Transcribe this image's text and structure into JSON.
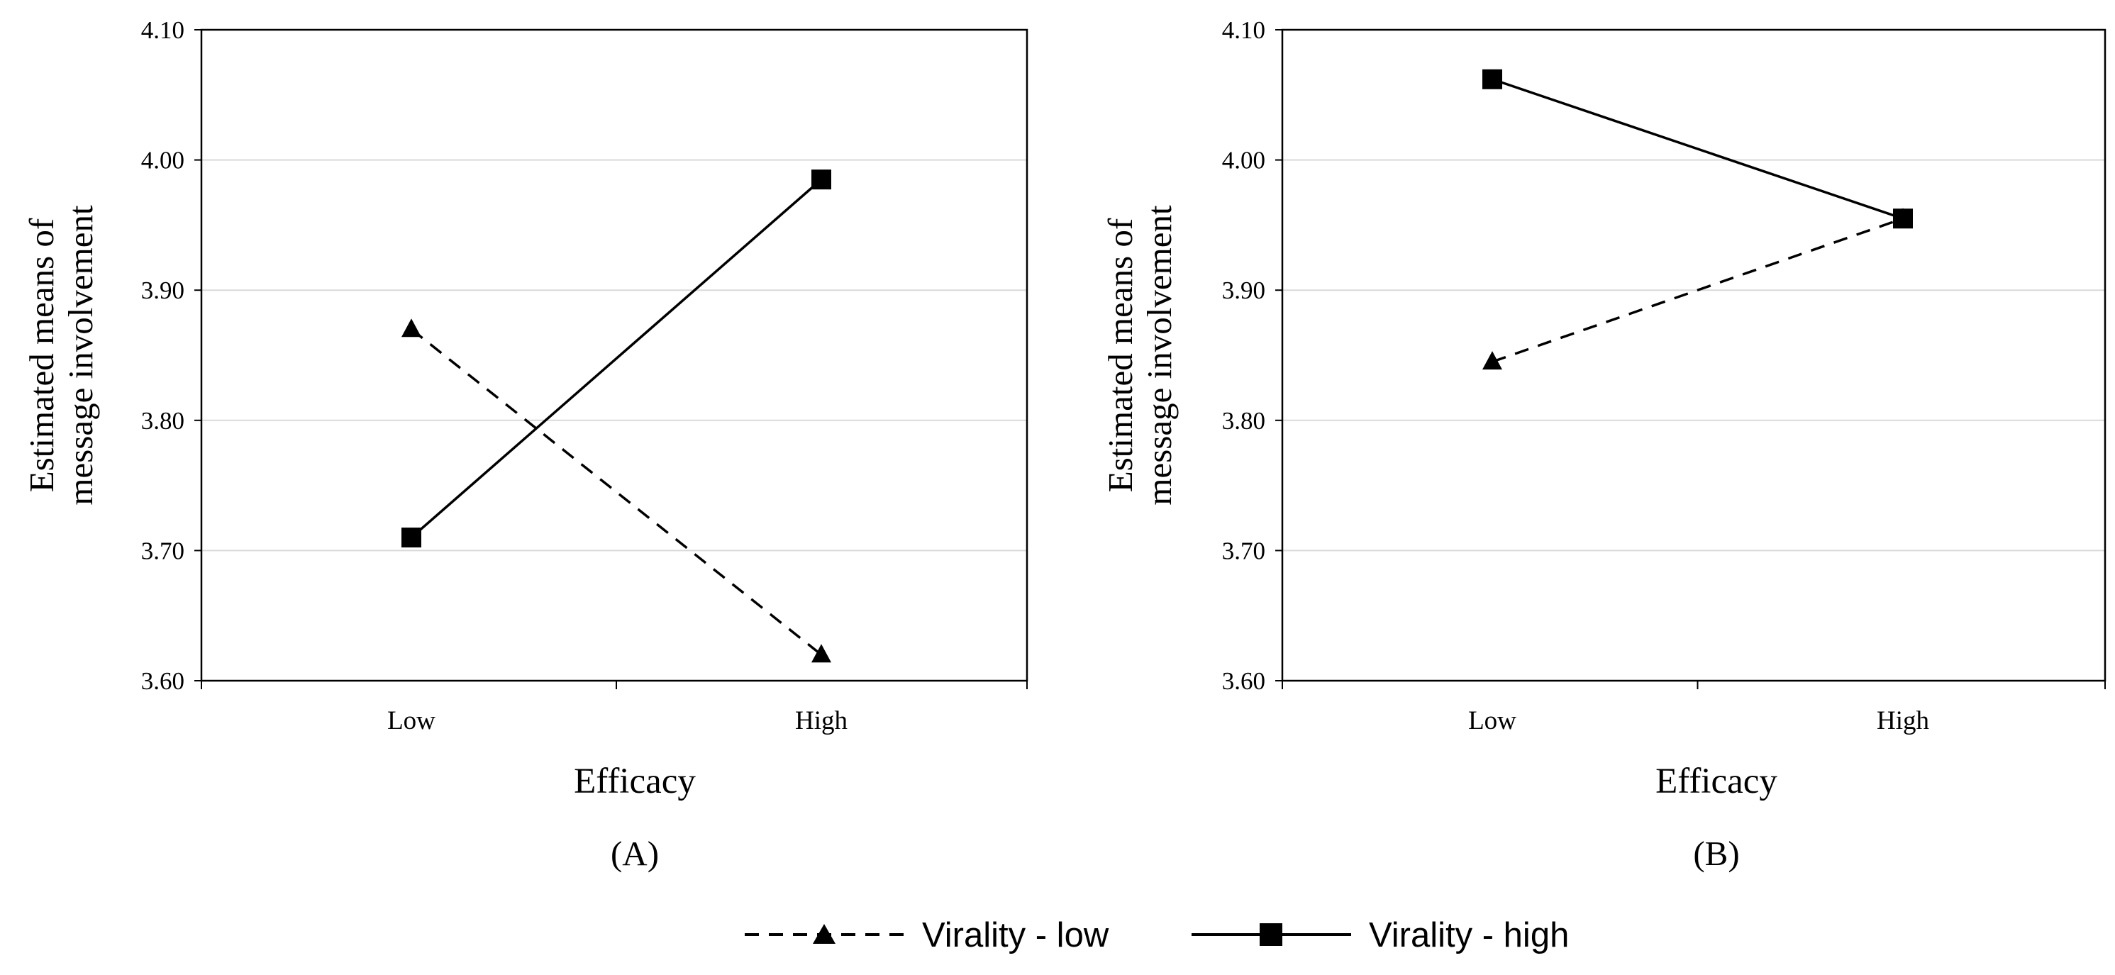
{
  "chart_data": [
    {
      "type": "line",
      "panel_label": "(A)",
      "categories": [
        "Low",
        "High"
      ],
      "xlabel": "Efficacy",
      "ylabel": [
        "Estimated means of",
        "message involvement"
      ],
      "ylim": [
        3.6,
        4.1
      ],
      "yticks": [
        "3.60",
        "3.70",
        "3.80",
        "3.90",
        "4.00",
        "4.10"
      ],
      "grid": true,
      "series": [
        {
          "name": "Virality - low",
          "values": [
            3.87,
            3.62
          ],
          "style": "dashed",
          "marker": "triangle"
        },
        {
          "name": "Virality - high",
          "values": [
            3.71,
            3.985
          ],
          "style": "solid",
          "marker": "square"
        }
      ]
    },
    {
      "type": "line",
      "panel_label": "(B)",
      "categories": [
        "Low",
        "High"
      ],
      "xlabel": "Efficacy",
      "ylabel": [
        "Estimated means of",
        "message involvement"
      ],
      "ylim": [
        3.6,
        4.1
      ],
      "yticks": [
        "3.60",
        "3.70",
        "3.80",
        "3.90",
        "4.00",
        "4.10"
      ],
      "grid": true,
      "series": [
        {
          "name": "Virality - low",
          "values": [
            3.845,
            3.955
          ],
          "style": "dashed",
          "marker": "triangle"
        },
        {
          "name": "Virality - high",
          "values": [
            4.062,
            3.955
          ],
          "style": "solid",
          "marker": "square"
        }
      ]
    }
  ],
  "legend": {
    "position": "bottom-center",
    "items": [
      {
        "label": "Virality - low",
        "style": "dashed",
        "marker": "triangle"
      },
      {
        "label": "Virality - high",
        "style": "solid",
        "marker": "square"
      }
    ]
  },
  "colors": {
    "line": "#000000",
    "grid": "#d9d9d9"
  }
}
